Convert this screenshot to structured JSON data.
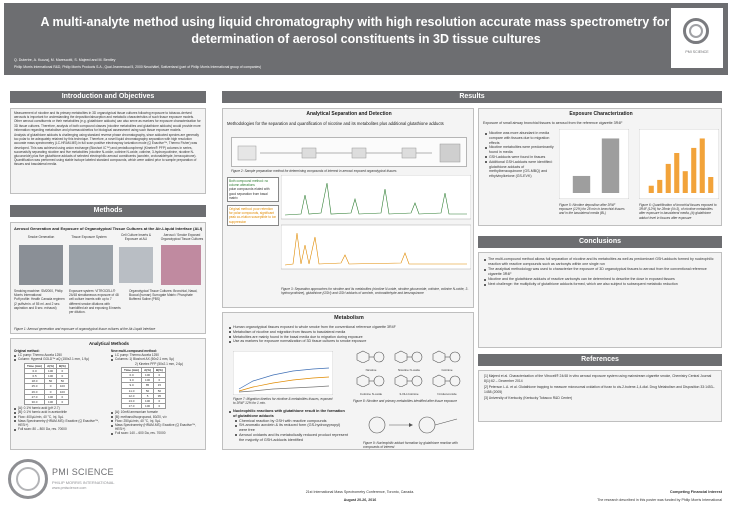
{
  "header": {
    "title_line1": "A multi-analyte method using liquid chromatography with high resolution accurate mass spectrometry for the",
    "title_line2": "determination of aerosol constituents in 3D tissue cultures",
    "authors": "Q. Dutertre, A. Kuczaj, M. Marescotti, S. Majeed and M. Bentley",
    "affiliation": "Philip Morris International R&D, Philip Morris Products S.A., Quai Jeanrenaud 5, 2000 Neuchâtel, Switzerland (part of Philip Morris International group of companies)",
    "logo_text": "PMI SCIENCE"
  },
  "sections": {
    "intro": "Introduction and Objectives",
    "methods": "Methods",
    "results": "Results",
    "conclusions": "Conclusions",
    "references": "References"
  },
  "intro": {
    "p1": "Measurement of nicotine and its primary metabolites in 3D organotypical tissue cultures following exposure to tobacco-derived aerosols is important for understanding the deposition/absorption and metabolic characteristics of such tissue exposure models. Other aerosol constituents or their metabolites (e.g. glutathione adducts) can also serve as markers for exposure characterization for 3D tissue cultures. Therefore, analysis of both compound classes (nicotine metabolites and glutathione adducts) would provide more information regarding metabolism and pharmacokinetics for biological assessment using such tissue exposure models.",
    "p2": "Analysis of glutathione adducts is challenging using standard reverse phase chromatography, since adducted species are generally too polar to be adequately retained by this technique. Therefore, a novel liquid chromatography separation with high resolution accurate mass spectrometry (LC-HRAM-MS) in full scan positive electrospray ionization mode (Q Exactive™, Thermo Fisher) was developed. This was achieved using anion exchange (Bioshort IC™) and pentafluorophenyl (Kinetex® PFP) columns in series, successfully separating nicotine and five metabolites (nicotine N-oxide, cotinine N-oxide, cotinine, 3-hydroxycotinine, nicotine N-glucuronide) plus five glutathione adducts of selected electrophilic aerosol constituents (acrolein, crotonaldehyde, benzoquinone). Quantification was performed using stable isotope labeled standard compounds, which were added prior to sample preparation of tissues and basolateral media."
  },
  "methods": {
    "aerosol_title": "Aerosol Generation and Exposure of Organotypical Tissue Cultures at the Air-Liquid Interface (ALI)",
    "steps": [
      "Smoke Generation",
      "Tissue Exposure System",
      "Cell Culture Inserts & Exposure at ALI",
      "Aerosol / Smoke Exposed Organotypical Tissue Cultures"
    ],
    "smoking_machine": "Smoking machine: SM2000, Philip Morris International",
    "puff_profile": "Puff profile: Health Canada regimen (2 puffs/min. of 55 ml. and 2 sec. aspiration and 8 sec. exhaust)",
    "exposure_system": "Exposure system: VITROCELL® 24/48 simultaneous exposure of 48 cell culture inserts with up to 7 different smoke dilutions with humidified air and exposing 8 inserts per dilution.",
    "tissue_cultures": "Organotypical Tissue Cultures: Bronchial, Nasal, Buccal (human) Surrogate Matrix: Phosphate Buffered Saline (PBS)",
    "figure1": "Figure 1: Aerosol generation and exposure of organotypical tissue cultures at the Air-Liquid Interface",
    "analytical_title": "Analytical Methods",
    "original_method": "Original method:",
    "orig_lc": "LC pump: Thermo Accela 1250",
    "orig_column": "Column: Hypersil GOLD™ aQ (150x2.1 mm, 1.9µ)",
    "orig_table_head": [
      "Time (min)",
      "A(%)",
      "B(%)"
    ],
    "orig_table": [
      [
        "0.0",
        "100",
        "0"
      ],
      [
        "0.5",
        "100",
        "0"
      ],
      [
        "18.0",
        "50",
        "50"
      ],
      [
        "25.0",
        "0",
        "100"
      ],
      [
        "26.0",
        "0",
        "100"
      ],
      [
        "27.0",
        "100",
        "0"
      ],
      [
        "30.0",
        "100",
        "0"
      ]
    ],
    "orig_a": "[A]: 0.1% formic acid (pH 2.7)",
    "orig_b": "[B]: 0.1% formic acid in acetonitrile",
    "orig_flow": "Flow: 400µL/min, 40 °C, Inj. 5µL",
    "orig_ms": "Mass Spectrometry (HRAM-MS): Exactive (Q Exactive™, HESI+)",
    "orig_scan": "Full scan: 80 – 800 Da, res. 70000",
    "new_method": "New multi-compound method:",
    "new_lc": "LC pump: Thermo Accela 1250",
    "new_columns": "Columns: 1) Bioshort AX (50x2.1 mm, 5µ)",
    "new_columns2": "2) Kinetex PFP (50x2.1 mm, 2.6µ)",
    "new_table_head": [
      "Time (min)",
      "A(%)",
      "B(%)"
    ],
    "new_table": [
      [
        "0.0",
        "100",
        "0"
      ],
      [
        "3.0",
        "100",
        "0"
      ],
      [
        "9.0",
        "85",
        "15"
      ],
      [
        "11.0",
        "50",
        "50"
      ],
      [
        "12.0",
        "5",
        "95"
      ],
      [
        "13.0",
        "100",
        "0"
      ],
      [
        "17.0",
        "100",
        "0"
      ]
    ],
    "new_a": "[A]: 10mM ammonium formate",
    "new_b": "[B]: methanol/isopropanol, 80/20, v/v",
    "new_flow": "Flow: 250µL/min, 40 °C, Inj. 5µL",
    "new_ms": "Mass Spectrometry (HRAM-MS): Exactive (Q Exactive™, HESI+)",
    "new_scan": "Full scan: 140 – 600 Da, res. 70000"
  },
  "results": {
    "sep_title": "Analytical Separation and Detection",
    "sep_intro": "Methodologies for the separation and quantification of nicotine and its metabolites plus additional glutathione adducts",
    "figure2": "Figure 2: Sample preparation method for determining compounds of interest in aerosol exposed organotypical tissues",
    "legend1": "Both compound method: no column alterations",
    "legend2": "polar compounds eluted with good separation from basal matrix",
    "legend3": "Original method: poor retention for polar compounds, significant peak co-elution susceptible to ion suppression",
    "figure3": "Figure 3: Separation approaches for nicotine and its metabolites (nicotine N-oxide, nicotine glucuronide, cotinine, cotinine N-oxide, 3-hydroxycotinine), glutathione (GSH) and GSH adducts of acrolein, crotonaldehyde and benzoquinone",
    "exposure_title": "Exposure Characterization",
    "exposure_sub": "Exposure of small airway bronchial tissues to aerosol from the reference cigarette 3R4F",
    "exposure_bullets": [
      "Nicotine was more abundant in media compare with tissues due to migration effects",
      "Nicotine metabolites were predominantly found in media",
      "GSH-adducts were found in tissues",
      "Additional GSH-adducts were identified: glutathione adducts of methylbenzoquinone (GS-MBQ) and ethylvinylketone (GS-EVK)"
    ],
    "figure5": "Figure 5: Nicotine deposition after 3R4F exposure (12%) for 28 min in bronchial tissues and in the basolateral media (BL)",
    "figure6": "Figure 6: Quantification of bronchial tissues exposed to 3R4F (12%) for 28min (N=3), of nicotine metabolites after exposure in basolateral media, (b) glutathione adduct level in tissues after exposure",
    "metab_title": "Metabolism",
    "metab_bullets": [
      "Human organotypical tissues exposed to whole smoke from the conventional reference cigarette 3R4F",
      "Metabolism of nicotine and migration from tissues to basolateral media",
      "Metabolites are mainly found in the basal media due to migration during exposure",
      "Use as markers for exposure normalization of 3D tissue cultures to smoke exposure"
    ],
    "figure7": "Figure 7: Migration kinetics for nicotine & metabolites tissues, exposed to 3R4F 12% for 1 min.",
    "figure8": "Figure 8: Nicotine and primary metabolites identified after tissue exposure",
    "gsh_bullet": "Nucleophilic reactions with glutathione result in the formation of glutathione adducts",
    "gsh_sub": [
      "Chemical reaction by GSH with reactive compounds",
      "SH-aromatic acrolein & its reduced form (GS-hydroxypropyl) were free",
      "Aerosol oxidants and its metabolically reduced product represent the majority of GSH-adducts identified"
    ],
    "figure9": "Figure 9: Nucleophilic adduct formation by glutathione reaction with compounds of interest",
    "chem_labels": [
      "Nicotine",
      "Nicotine N-oxide",
      "Cotinine",
      "Cotinine N-oxide",
      "3-OH-Cotinine",
      "N-Glucuronide"
    ],
    "chart_fig5": {
      "type": "bar",
      "categories": [
        "Tissue",
        "BL"
      ],
      "values": [
        25,
        80
      ]
    },
    "chart_fig6": {
      "type": "bar",
      "categories": [
        "a",
        "b",
        "c",
        "d",
        "e",
        "f",
        "g",
        "h"
      ],
      "values": [
        10,
        18,
        40,
        55,
        30,
        62,
        75,
        22
      ]
    }
  },
  "conclusions": [
    "The multi-compound method allows full separation of nicotine and its metabolites as well as predominant GSH-adducts formed by nucleophilic reaction with reactive compounds such as carbonyls within one single run",
    "The analytical methodology was used to characterize the exposure of 3D organotypical tissues to aerosol from the conventional reference cigarette 3R4F",
    "Nicotine and the glutathione adducts of reactive carbonyls can be determined to describe the dose in exposed tissues",
    "Next challenge: the multiplicity of glutathione adducts formed, which are also subject to subsequent metabolic reduction"
  ],
  "references": [
    "[1] Majeed et al. Characterization of the Vitrocell® 24/48 in vitro aerosol exposure system using mainstream cigarette smoke, Chemistry Central Journal 8(1):62 – December 2014",
    "[2] Peterson L.A. et al. Glutathione trapping to measure microsomal oxidation of furan to cis-2-butene-1,4-dial. Drug Metabolism and Disposition 33:1453–1458 (2005)",
    "[3] University of Kentucky (Kentucky Tobacco R&D Center)"
  ],
  "footer": {
    "logo_main": "PMI SCIENCE",
    "logo_sub": "PHILIP MORRIS INTERNATIONAL",
    "logo_url": "www.pmiscience.com",
    "conference": "21st International Mass Spectrometry Conference, Toronto, Canada.",
    "dates": "August 20-26, 2016",
    "interest_title": "Competing Financial Interest",
    "interest_text": "The research described in this poster was funded by Philip Morris International"
  },
  "colors": {
    "header_gray": "#6d6e71",
    "bar_orange": "#f2a33a",
    "bar_gray": "#9e9e9e"
  }
}
